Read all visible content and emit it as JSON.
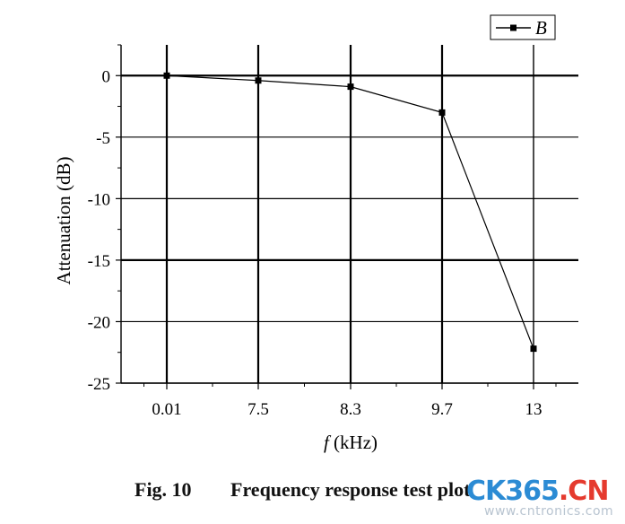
{
  "chart_data": {
    "type": "line",
    "title": "",
    "xlabel_prefix": "f",
    "xlabel_unit": "(kHz)",
    "ylabel": "Attenuation (dB)",
    "categories": [
      "0.01",
      "7.5",
      "8.3",
      "9.7",
      "13"
    ],
    "series": [
      {
        "name": "B",
        "values": [
          0,
          -0.4,
          -0.9,
          -3.0,
          -22.2
        ]
      }
    ],
    "yticks": [
      "0",
      "-5",
      "-10",
      "-15",
      "-20",
      "-25"
    ],
    "ylim": [
      -25,
      2.5
    ],
    "grid": true,
    "legend": "top-right",
    "colors": {
      "line": "#000000",
      "grid": "#000000"
    }
  },
  "caption": {
    "fig": "Fig. 10",
    "text": "Frequency response test plot"
  },
  "watermark": {
    "logo_ck": "CK365",
    "logo_dot": ".",
    "logo_cn": "CN",
    "url": "www.cntronics.com"
  }
}
